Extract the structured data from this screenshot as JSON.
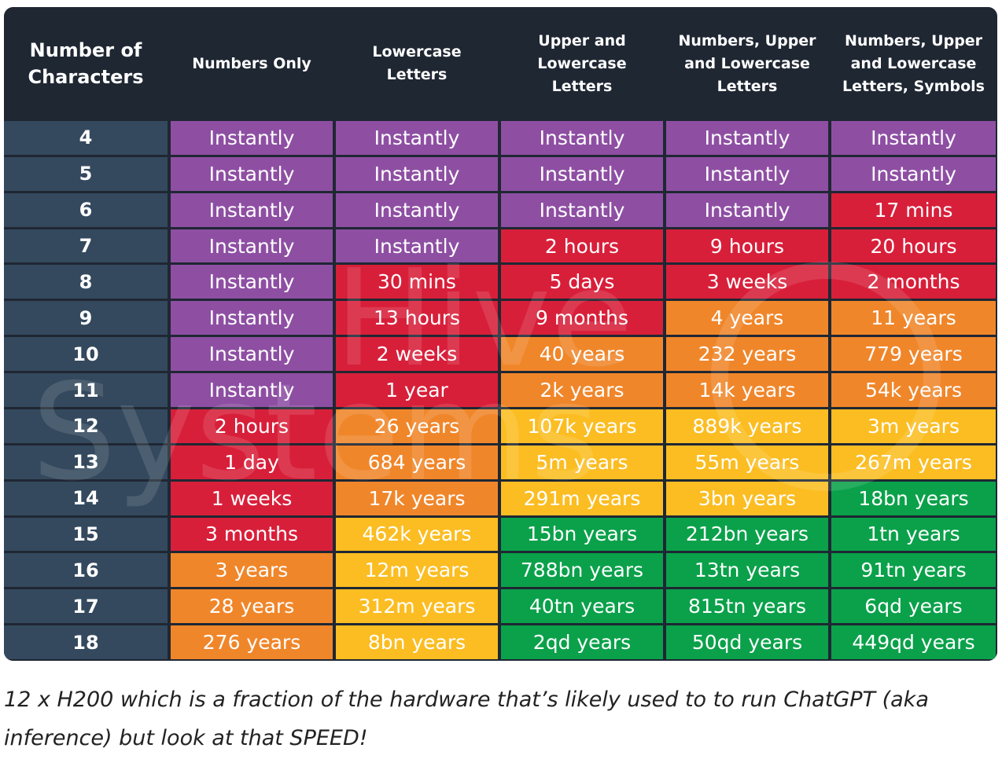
{
  "chart_data": {
    "type": "table",
    "columns": [
      "Number of\nCharacters",
      "Numbers Only",
      "Lowercase\nLetters",
      "Upper and\nLowercase\nLetters",
      "Numbers, Upper\nand Lowercase\nLetters",
      "Numbers, Upper\nand Lowercase\nLetters, Symbols"
    ],
    "rows": [
      [
        "4",
        "Instantly",
        "Instantly",
        "Instantly",
        "Instantly",
        "Instantly"
      ],
      [
        "5",
        "Instantly",
        "Instantly",
        "Instantly",
        "Instantly",
        "Instantly"
      ],
      [
        "6",
        "Instantly",
        "Instantly",
        "Instantly",
        "Instantly",
        "17 mins"
      ],
      [
        "7",
        "Instantly",
        "Instantly",
        "2 hours",
        "9 hours",
        "20 hours"
      ],
      [
        "8",
        "Instantly",
        "30 mins",
        "5 days",
        "3 weeks",
        "2 months"
      ],
      [
        "9",
        "Instantly",
        "13 hours",
        "9 months",
        "4 years",
        "11 years"
      ],
      [
        "10",
        "Instantly",
        "2 weeks",
        "40 years",
        "232 years",
        "779 years"
      ],
      [
        "11",
        "Instantly",
        "1 year",
        "2k years",
        "14k years",
        "54k years"
      ],
      [
        "12",
        "2 hours",
        "26 years",
        "107k years",
        "889k years",
        "3m years"
      ],
      [
        "13",
        "1 day",
        "684 years",
        "5m years",
        "55m years",
        "267m years"
      ],
      [
        "14",
        "1 weeks",
        "17k years",
        "291m years",
        "3bn years",
        "18bn years"
      ],
      [
        "15",
        "3 months",
        "462k years",
        "15bn years",
        "212bn years",
        "1tn years"
      ],
      [
        "16",
        "3 years",
        "12m years",
        "788bn years",
        "13tn years",
        "91tn years"
      ],
      [
        "17",
        "28 years",
        "312m years",
        "40tn years",
        "815tn years",
        "6qd years"
      ],
      [
        "18",
        "276 years",
        "8bn years",
        "2qd years",
        "50qd years",
        "449qd years"
      ]
    ],
    "cell_colors": [
      [
        "purple",
        "purple",
        "purple",
        "purple",
        "purple"
      ],
      [
        "purple",
        "purple",
        "purple",
        "purple",
        "purple"
      ],
      [
        "purple",
        "purple",
        "purple",
        "purple",
        "red"
      ],
      [
        "purple",
        "purple",
        "red",
        "red",
        "red"
      ],
      [
        "purple",
        "red",
        "red",
        "red",
        "red"
      ],
      [
        "purple",
        "red",
        "red",
        "orange",
        "orange"
      ],
      [
        "purple",
        "red",
        "orange",
        "orange",
        "orange"
      ],
      [
        "purple",
        "red",
        "orange",
        "orange",
        "orange"
      ],
      [
        "red",
        "orange",
        "yellow",
        "yellow",
        "yellow"
      ],
      [
        "red",
        "orange",
        "yellow",
        "yellow",
        "yellow"
      ],
      [
        "red",
        "orange",
        "yellow",
        "yellow",
        "green"
      ],
      [
        "red",
        "yellow",
        "green",
        "green",
        "green"
      ],
      [
        "orange",
        "yellow",
        "green",
        "green",
        "green"
      ],
      [
        "orange",
        "yellow",
        "green",
        "green",
        "green"
      ],
      [
        "orange",
        "yellow",
        "green",
        "green",
        "green"
      ]
    ],
    "palette": {
      "purple": "#8e4fa3",
      "red": "#d81f3a",
      "orange": "#f0862a",
      "yellow": "#fbbd22",
      "green": "#0aa14a",
      "rowhead": "#34495e",
      "header": "#1f2733"
    },
    "watermark": "Hive Systems"
  },
  "caption": "12 x H200 which is a fraction of the hardware that’s likely used to to run ChatGPT (aka inference) but look at that SPEED!"
}
